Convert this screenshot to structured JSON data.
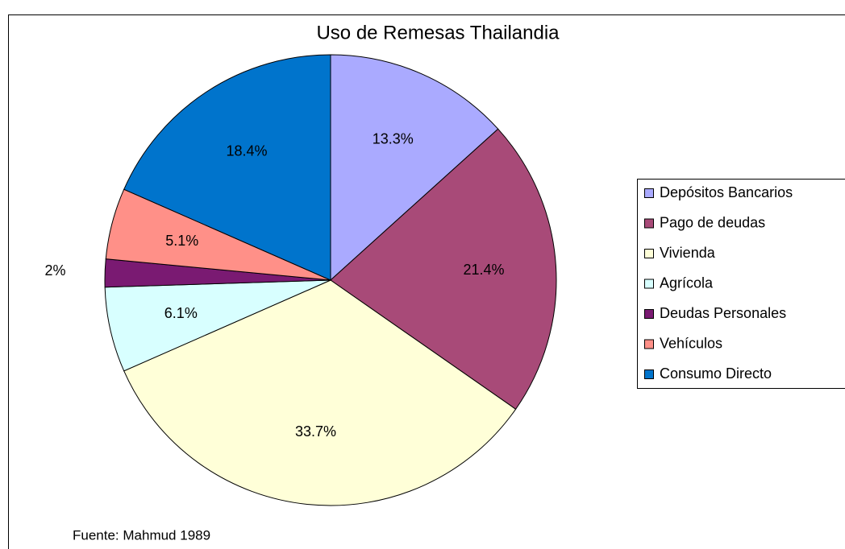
{
  "chart_data": {
    "type": "pie",
    "title": "Uso de Remesas Thailandia",
    "categories": [
      "Depósitos Bancarios",
      "Pago de deudas",
      "Vivienda",
      "Agrícola",
      "Deudas Personales",
      "Vehículos",
      "Consumo Directo"
    ],
    "values": [
      13.3,
      21.4,
      33.7,
      6.1,
      2,
      5.1,
      18.4
    ],
    "value_labels": [
      "13.3%",
      "21.4%",
      "33.7%",
      "6.1%",
      "2%",
      "5.1%",
      "18.4%"
    ],
    "colors": [
      "#aaaaff",
      "#a84a78",
      "#ffffd8",
      "#d8ffff",
      "#7a1a72",
      "#ff9088",
      "#0074cc"
    ],
    "legend": "right",
    "source": "Fuente: Mahmud 1989"
  }
}
